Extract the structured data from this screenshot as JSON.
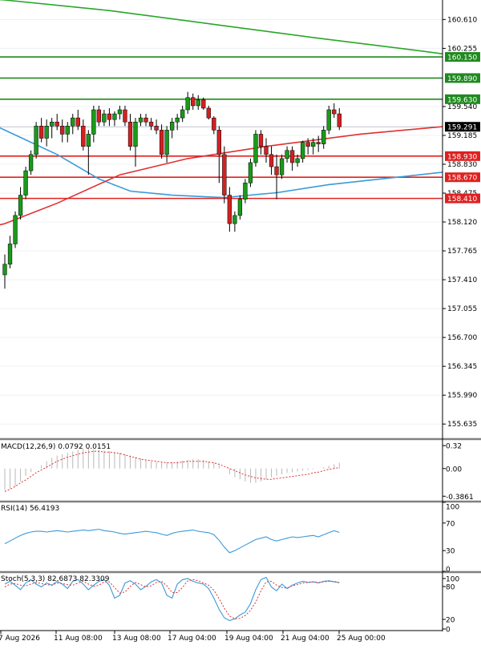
{
  "chart_data": [
    {
      "type": "candlestick",
      "price_labels": [
        "160.610",
        "160.255",
        "159.540",
        "159.185",
        "158.830",
        "158.475",
        "158.120",
        "157.765",
        "157.410",
        "157.055",
        "156.700",
        "156.345",
        "155.990",
        "155.635"
      ],
      "x_labels": [
        "7 Aug 2026",
        "11 Aug 08:00",
        "13 Aug 08:00",
        "17 Aug 04:00",
        "19 Aug 04:00",
        "21 Aug 04:00",
        "25 Aug 00:00"
      ],
      "current_price": "159.291",
      "ylim": [
        155.45,
        160.85
      ],
      "resistance_levels": [
        {
          "label": "160.150",
          "value": 160.15
        },
        {
          "label": "159.890",
          "value": 159.89
        },
        {
          "label": "159.630",
          "value": 159.63
        }
      ],
      "support_levels": [
        {
          "label": "158.930",
          "value": 158.93
        },
        {
          "label": "158.670",
          "value": 158.67
        },
        {
          "label": "158.410",
          "value": 158.41
        }
      ],
      "candles": [
        [
          157.47,
          157.72,
          157.3,
          157.6
        ],
        [
          157.6,
          157.95,
          157.55,
          157.85
        ],
        [
          157.85,
          158.25,
          157.8,
          158.2
        ],
        [
          158.2,
          158.55,
          158.15,
          158.45
        ],
        [
          158.45,
          158.8,
          158.4,
          158.75
        ],
        [
          158.75,
          159.0,
          158.7,
          158.95
        ],
        [
          158.95,
          159.35,
          158.9,
          159.3
        ],
        [
          159.3,
          159.4,
          159.1,
          159.15
        ],
        [
          159.15,
          159.38,
          159.05,
          159.3
        ],
        [
          159.3,
          159.4,
          159.15,
          159.35
        ],
        [
          159.35,
          159.45,
          159.25,
          159.3
        ],
        [
          159.3,
          159.38,
          159.1,
          159.2
        ],
        [
          159.2,
          159.35,
          159.1,
          159.3
        ],
        [
          159.3,
          159.45,
          159.2,
          159.4
        ],
        [
          159.4,
          159.5,
          159.25,
          159.3
        ],
        [
          159.3,
          159.38,
          159.0,
          159.05
        ],
        [
          159.05,
          159.25,
          158.7,
          159.2
        ],
        [
          159.2,
          159.55,
          159.1,
          159.5
        ],
        [
          159.5,
          159.55,
          159.3,
          159.35
        ],
        [
          159.35,
          159.5,
          159.3,
          159.45
        ],
        [
          159.45,
          159.52,
          159.3,
          159.38
        ],
        [
          159.38,
          159.48,
          159.3,
          159.45
        ],
        [
          159.45,
          159.55,
          159.38,
          159.5
        ],
        [
          159.5,
          159.55,
          159.3,
          159.35
        ],
        [
          159.35,
          159.45,
          159.0,
          159.05
        ],
        [
          159.05,
          159.4,
          158.8,
          159.35
        ],
        [
          159.35,
          159.45,
          159.3,
          159.4
        ],
        [
          159.4,
          159.45,
          159.3,
          159.35
        ],
        [
          159.35,
          159.4,
          159.25,
          159.3
        ],
        [
          159.3,
          159.38,
          159.2,
          159.25
        ],
        [
          159.25,
          159.32,
          158.9,
          158.95
        ],
        [
          158.95,
          159.3,
          158.85,
          159.25
        ],
        [
          159.25,
          159.4,
          159.15,
          159.35
        ],
        [
          159.35,
          159.45,
          159.25,
          159.4
        ],
        [
          159.4,
          159.55,
          159.35,
          159.5
        ],
        [
          159.5,
          159.72,
          159.45,
          159.65
        ],
        [
          159.65,
          159.7,
          159.5,
          159.55
        ],
        [
          159.55,
          159.68,
          159.5,
          159.62
        ],
        [
          159.62,
          159.65,
          159.5,
          159.52
        ],
        [
          159.52,
          159.55,
          159.38,
          159.4
        ],
        [
          159.4,
          159.42,
          159.2,
          159.25
        ],
        [
          159.25,
          159.3,
          158.6,
          158.95
        ],
        [
          158.95,
          159.05,
          158.35,
          158.45
        ],
        [
          158.45,
          158.55,
          158.0,
          158.1
        ],
        [
          158.1,
          158.25,
          158.0,
          158.2
        ],
        [
          158.2,
          158.45,
          158.15,
          158.4
        ],
        [
          158.4,
          158.65,
          158.35,
          158.6
        ],
        [
          158.6,
          158.9,
          158.55,
          158.85
        ],
        [
          158.85,
          159.25,
          158.8,
          159.2
        ],
        [
          159.2,
          159.25,
          158.95,
          159.05
        ],
        [
          159.05,
          159.15,
          158.85,
          158.95
        ],
        [
          158.95,
          159.05,
          158.7,
          158.8
        ],
        [
          158.8,
          158.95,
          158.4,
          158.7
        ],
        [
          158.7,
          158.95,
          158.65,
          158.9
        ],
        [
          158.9,
          159.05,
          158.85,
          159.0
        ],
        [
          159.0,
          159.05,
          158.75,
          158.85
        ],
        [
          158.85,
          158.95,
          158.8,
          158.9
        ],
        [
          158.9,
          159.12,
          158.85,
          159.1
        ],
        [
          159.1,
          159.15,
          158.95,
          159.05
        ],
        [
          159.05,
          159.15,
          158.95,
          159.1
        ],
        [
          159.1,
          159.18,
          158.98,
          159.08
        ],
        [
          159.08,
          159.3,
          159.02,
          159.25
        ],
        [
          159.25,
          159.55,
          159.2,
          159.5
        ],
        [
          159.5,
          159.58,
          159.4,
          159.45
        ],
        [
          159.45,
          159.52,
          159.25,
          159.29
        ]
      ],
      "moving_averages": [
        {
          "color": "#2aa52a",
          "values": [
            [
              -20,
              160.95
            ],
            [
              0,
              160.85
            ],
            [
              20,
              160.72
            ],
            [
              40,
              160.55
            ],
            [
              60,
              160.38
            ],
            [
              80,
              160.22
            ],
            [
              100,
              160.05
            ],
            [
              120,
              159.87
            ],
            [
              135,
              159.72
            ],
            [
              148,
              159.58
            ],
            [
              160,
              159.45
            ],
            [
              172,
              159.32
            ],
            [
              184,
              159.18
            ],
            [
              196,
              159.05
            ],
            [
              208,
              158.9
            ],
            [
              220,
              158.75
            ],
            [
              230,
              158.7
            ],
            [
              240,
              158.69
            ],
            [
              250,
              158.7
            ],
            [
              258,
              158.74
            ]
          ]
        },
        {
          "color": "#3a9ad9",
          "values": [
            [
              -20,
              159.85
            ],
            [
              -10,
              159.55
            ],
            [
              0,
              159.25
            ],
            [
              10,
              158.95
            ],
            [
              18,
              158.65
            ],
            [
              24,
              158.5
            ],
            [
              32,
              158.45
            ],
            [
              42,
              158.42
            ],
            [
              52,
              158.48
            ],
            [
              62,
              158.58
            ],
            [
              72,
              158.65
            ],
            [
              85,
              158.74
            ],
            [
              100,
              158.84
            ],
            [
              115,
              158.95
            ],
            [
              130,
              159.06
            ],
            [
              145,
              159.15
            ],
            [
              160,
              159.2
            ],
            [
              175,
              159.27
            ],
            [
              190,
              159.28
            ],
            [
              205,
              159.25
            ],
            [
              220,
              159.22
            ],
            [
              232,
              159.2
            ],
            [
              246,
              159.21
            ],
            [
              258,
              159.22
            ]
          ]
        },
        {
          "color": "#e03030",
          "values": [
            [
              -20,
              157.8
            ],
            [
              -10,
              157.95
            ],
            [
              0,
              158.1
            ],
            [
              10,
              158.35
            ],
            [
              22,
              158.7
            ],
            [
              35,
              158.9
            ],
            [
              50,
              159.05
            ],
            [
              68,
              159.2
            ],
            [
              85,
              159.3
            ],
            [
              100,
              159.33
            ],
            [
              120,
              159.35
            ],
            [
              135,
              159.42
            ],
            [
              150,
              159.45
            ],
            [
              165,
              159.4
            ],
            [
              178,
              159.28
            ],
            [
              190,
              159.12
            ],
            [
              202,
              158.98
            ],
            [
              214,
              158.88
            ],
            [
              224,
              158.8
            ],
            [
              232,
              158.78
            ],
            [
              240,
              158.82
            ],
            [
              250,
              158.93
            ],
            [
              258,
              159.0
            ]
          ]
        }
      ]
    },
    {
      "type": "line",
      "title": "MACD(12,26,9) 0.0792 0.0151",
      "ylabels": [
        "0.32",
        "0.00",
        "-0.3861"
      ],
      "ylim": [
        -0.45,
        0.4
      ],
      "histogram": [
        -0.3,
        -0.28,
        -0.25,
        -0.18,
        -0.1,
        -0.05,
        0.0,
        0.05,
        0.1,
        0.15,
        0.18,
        0.2,
        0.22,
        0.24,
        0.26,
        0.28,
        0.28,
        0.27,
        0.26,
        0.25,
        0.24,
        0.23,
        0.22,
        0.2,
        0.18,
        0.16,
        0.14,
        0.12,
        0.1,
        0.09,
        0.08,
        0.08,
        0.09,
        0.1,
        0.11,
        0.12,
        0.13,
        0.13,
        0.12,
        0.1,
        0.08,
        0.05,
        0.0,
        -0.08,
        -0.12,
        -0.15,
        -0.18,
        -0.2,
        -0.2,
        -0.18,
        -0.15,
        -0.12,
        -0.1,
        -0.08,
        -0.06,
        -0.05,
        -0.04,
        -0.03,
        -0.02,
        -0.01,
        0.0,
        0.02,
        0.04,
        0.06,
        0.079
      ],
      "signal": [
        -0.32,
        -0.29,
        -0.25,
        -0.2,
        -0.16,
        -0.11,
        -0.06,
        -0.02,
        0.02,
        0.06,
        0.1,
        0.13,
        0.16,
        0.18,
        0.2,
        0.22,
        0.23,
        0.24,
        0.24,
        0.23,
        0.23,
        0.22,
        0.21,
        0.19,
        0.17,
        0.15,
        0.13,
        0.12,
        0.11,
        0.1,
        0.09,
        0.08,
        0.08,
        0.08,
        0.09,
        0.1,
        0.1,
        0.1,
        0.1,
        0.09,
        0.08,
        0.06,
        0.03,
        0.0,
        -0.03,
        -0.06,
        -0.09,
        -0.11,
        -0.13,
        -0.14,
        -0.15,
        -0.15,
        -0.14,
        -0.13,
        -0.12,
        -0.11,
        -0.1,
        -0.09,
        -0.08,
        -0.06,
        -0.05,
        -0.03,
        -0.01,
        0.0,
        0.015
      ]
    },
    {
      "type": "line",
      "title": "RSI(14) 56.4193",
      "ylabels": [
        "100",
        "70",
        "30",
        "0"
      ],
      "ylim": [
        0,
        100
      ],
      "values": [
        40,
        44,
        48,
        52,
        55,
        57,
        58,
        58,
        57,
        58,
        59,
        58,
        57,
        58,
        59,
        60,
        59,
        60,
        61,
        59,
        58,
        57,
        55,
        54,
        55,
        56,
        57,
        58,
        57,
        56,
        54,
        52,
        55,
        57,
        58,
        59,
        60,
        58,
        57,
        56,
        53,
        45,
        35,
        27,
        30,
        34,
        38,
        42,
        46,
        48,
        50,
        46,
        44,
        46,
        48,
        50,
        49,
        50,
        51,
        52,
        50,
        53,
        56,
        59,
        56.4
      ]
    },
    {
      "type": "line",
      "title": "Stoch(5,3,3) 82.6873 82.3309",
      "ylabels": [
        "100",
        "80",
        "20",
        "0"
      ],
      "ylim": [
        0,
        100
      ],
      "k": [
        80,
        85,
        78,
        70,
        82,
        88,
        80,
        75,
        82,
        78,
        85,
        80,
        72,
        85,
        88,
        80,
        70,
        78,
        85,
        88,
        78,
        55,
        60,
        82,
        86,
        80,
        70,
        76,
        84,
        88,
        82,
        60,
        55,
        80,
        88,
        90,
        85,
        82,
        80,
        72,
        55,
        35,
        20,
        15,
        18,
        25,
        30,
        45,
        70,
        88,
        92,
        75,
        68,
        80,
        72,
        78,
        82,
        85,
        83,
        84,
        82,
        85,
        86,
        84,
        82.7
      ],
      "d": [
        75,
        80,
        81,
        78,
        77,
        80,
        83,
        81,
        79,
        78,
        82,
        81,
        79,
        78,
        82,
        85,
        80,
        76,
        78,
        84,
        84,
        74,
        64,
        66,
        76,
        83,
        79,
        75,
        77,
        83,
        85,
        77,
        65,
        65,
        74,
        86,
        88,
        86,
        82,
        78,
        69,
        54,
        37,
        23,
        18,
        19,
        24,
        33,
        48,
        68,
        84,
        85,
        78,
        74,
        73,
        77,
        79,
        82,
        83,
        84,
        83,
        84,
        85,
        85,
        82.3
      ]
    }
  ]
}
